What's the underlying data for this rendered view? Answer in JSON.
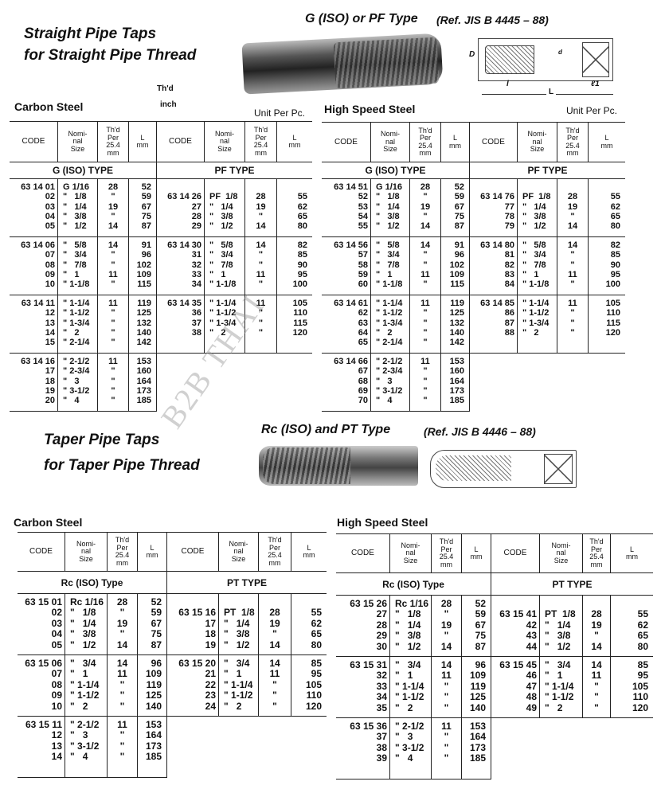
{
  "column_headers": [
    "CODE",
    "Nomi-\nnal\nSize",
    "Th'd\nPer\n25.4\nmm",
    "L\nmm"
  ],
  "watermark": "B2B THAI",
  "straight": {
    "title_line1": "Straight Pipe Taps",
    "title_line2": "for Straight Pipe Thread",
    "type_title": "G (ISO) or PF Type",
    "ref": "(Ref. JIS B 4445 – 88)",
    "drawing_labels": [
      "D",
      "d",
      "l",
      "ℓ1",
      "L"
    ],
    "thd_label": "Th'd",
    "inch_label": "inch",
    "carbon": {
      "label": "Carbon Steel",
      "unit": "Unit Per Pc.",
      "halves": [
        {
          "type_label": "G (ISO) TYPE",
          "groups": [
            [
              [
                "63 14 01",
                "G 1/16",
                "28",
                "52"
              ],
              [
                "02",
                "\"   1/8",
                "\"",
                "59"
              ],
              [
                "03",
                "\"   1/4",
                "19",
                "67"
              ],
              [
                "04",
                "\"   3/8",
                "\"",
                "75"
              ],
              [
                "05",
                "\"   1/2",
                "14",
                "87"
              ]
            ],
            [
              [
                "63 14 06",
                "\"   5/8",
                "14",
                "91"
              ],
              [
                "07",
                "\"   3/4",
                "\"",
                "96"
              ],
              [
                "08",
                "\"   7/8",
                "\"",
                "102"
              ],
              [
                "09",
                "\"   1",
                "11",
                "109"
              ],
              [
                "10",
                "\" 1-1/8",
                "\"",
                "115"
              ]
            ],
            [
              [
                "63 14 11",
                "\" 1-1/4",
                "11",
                "119"
              ],
              [
                "12",
                "\" 1-1/2",
                "\"",
                "125"
              ],
              [
                "13",
                "\" 1-3/4",
                "\"",
                "132"
              ],
              [
                "14",
                "\"   2",
                "\"",
                "140"
              ],
              [
                "15",
                "\" 2-1/4",
                "\"",
                "142"
              ]
            ],
            [
              [
                "63 14 16",
                "\" 2-1/2",
                "11",
                "153"
              ],
              [
                "17",
                "\" 2-3/4",
                "\"",
                "160"
              ],
              [
                "18",
                "\"   3",
                "\"",
                "164"
              ],
              [
                "19",
                "\" 3-1/2",
                "\"",
                "173"
              ],
              [
                "20",
                "\"   4",
                "\"",
                "185"
              ]
            ]
          ]
        },
        {
          "type_label": "PF TYPE",
          "groups": [
            [
              [
                "63 14 26",
                "PF  1/8",
                "28",
                "55"
              ],
              [
                "27",
                "\"   1/4",
                "19",
                "62"
              ],
              [
                "28",
                "\"   3/8",
                "\"",
                "65"
              ],
              [
                "29",
                "\"   1/2",
                "14",
                "80"
              ]
            ],
            [
              [
                "63 14 30",
                "\"   5/8",
                "14",
                "82"
              ],
              [
                "31",
                "\"   3/4",
                "\"",
                "85"
              ],
              [
                "32",
                "\"   7/8",
                "\"",
                "90"
              ],
              [
                "33",
                "\"   1",
                "11",
                "95"
              ],
              [
                "34",
                "\" 1-1/8",
                "\"",
                "100"
              ]
            ],
            [
              [
                "63 14 35",
                "\" 1-1/4",
                "11",
                "105"
              ],
              [
                "36",
                "\" 1-1/2",
                "\"",
                "110"
              ],
              [
                "37",
                "\" 1-3/4",
                "\"",
                "115"
              ],
              [
                "38",
                "\"   2",
                "\"",
                "120"
              ]
            ]
          ]
        }
      ]
    },
    "hss": {
      "label": "High Speed Steel",
      "unit": "Unit Per Pc.",
      "halves": [
        {
          "type_label": "G (ISO) TYPE",
          "groups": [
            [
              [
                "63 14 51",
                "G 1/16",
                "28",
                "52"
              ],
              [
                "52",
                "\"   1/8",
                "\"",
                "59"
              ],
              [
                "53",
                "\"   1/4",
                "19",
                "67"
              ],
              [
                "54",
                "\"   3/8",
                "\"",
                "75"
              ],
              [
                "55",
                "\"   1/2",
                "14",
                "87"
              ]
            ],
            [
              [
                "63 14 56",
                "\"   5/8",
                "14",
                "91"
              ],
              [
                "57",
                "\"   3/4",
                "\"",
                "96"
              ],
              [
                "58",
                "\"   7/8",
                "\"",
                "102"
              ],
              [
                "59",
                "\"   1",
                "11",
                "109"
              ],
              [
                "60",
                "\" 1-1/8",
                "\"",
                "115"
              ]
            ],
            [
              [
                "63 14 61",
                "\" 1-1/4",
                "11",
                "119"
              ],
              [
                "62",
                "\" 1-1/2",
                "\"",
                "125"
              ],
              [
                "63",
                "\" 1-3/4",
                "\"",
                "132"
              ],
              [
                "64",
                "\"   2",
                "\"",
                "140"
              ],
              [
                "65",
                "\" 2-1/4",
                "\"",
                "142"
              ]
            ],
            [
              [
                "63 14 66",
                "\" 2-1/2",
                "11",
                "153"
              ],
              [
                "67",
                "\" 2-3/4",
                "\"",
                "160"
              ],
              [
                "68",
                "\"   3",
                "\"",
                "164"
              ],
              [
                "69",
                "\" 3-1/2",
                "\"",
                "173"
              ],
              [
                "70",
                "\"   4",
                "\"",
                "185"
              ]
            ]
          ]
        },
        {
          "type_label": "PF TYPE",
          "groups": [
            [
              [
                "63 14 76",
                "PF  1/8",
                "28",
                "55"
              ],
              [
                "77",
                "\"   1/4",
                "19",
                "62"
              ],
              [
                "78",
                "\"   3/8",
                "\"",
                "65"
              ],
              [
                "79",
                "\"   1/2",
                "14",
                "80"
              ]
            ],
            [
              [
                "63 14 80",
                "\"   5/8",
                "14",
                "82"
              ],
              [
                "81",
                "\"   3/4",
                "\"",
                "85"
              ],
              [
                "82",
                "\"   7/8",
                "\"",
                "90"
              ],
              [
                "83",
                "\"   1",
                "11",
                "95"
              ],
              [
                "84",
                "\" 1-1/8",
                "\"",
                "100"
              ]
            ],
            [
              [
                "63 14 85",
                "\" 1-1/4",
                "11",
                "105"
              ],
              [
                "86",
                "\" 1-1/2",
                "\"",
                "110"
              ],
              [
                "87",
                "\" 1-3/4",
                "\"",
                "115"
              ],
              [
                "88",
                "\"   2",
                "\"",
                "120"
              ]
            ]
          ]
        }
      ]
    }
  },
  "taper": {
    "title_line1": "Taper Pipe Taps",
    "title_line2": "for Taper Pipe Thread",
    "type_title": "Rc (ISO) and PT Type",
    "ref": "(Ref. JIS B 4446 – 88)",
    "carbon": {
      "label": "Carbon Steel",
      "halves": [
        {
          "type_label": "Rc (ISO) Type",
          "groups": [
            [
              [
                "63 15 01",
                "Rc 1/16",
                "28",
                "52"
              ],
              [
                "02",
                "\"   1/8",
                "\"",
                "59"
              ],
              [
                "03",
                "\"   1/4",
                "19",
                "67"
              ],
              [
                "04",
                "\"   3/8",
                "\"",
                "75"
              ],
              [
                "05",
                "\"   1/2",
                "14",
                "87"
              ]
            ],
            [
              [
                "63 15 06",
                "\"   3/4",
                "14",
                "96"
              ],
              [
                "07",
                "\"   1",
                "11",
                "109"
              ],
              [
                "08",
                "\" 1-1/4",
                "\"",
                "119"
              ],
              [
                "09",
                "\" 1-1/2",
                "\"",
                "125"
              ],
              [
                "10",
                "\"   2",
                "\"",
                "140"
              ]
            ],
            [
              [
                "63 15 11",
                "\" 2-1/2",
                "11",
                "153"
              ],
              [
                "12",
                "\"   3",
                "\"",
                "164"
              ],
              [
                "13",
                "\" 3-1/2",
                "\"",
                "173"
              ],
              [
                "14",
                "\"   4",
                "\"",
                "185"
              ]
            ]
          ]
        },
        {
          "type_label": "PT TYPE",
          "groups": [
            [
              [
                "63 15 16",
                "PT  1/8",
                "28",
                "55"
              ],
              [
                "17",
                "\"   1/4",
                "19",
                "62"
              ],
              [
                "18",
                "\"   3/8",
                "\"",
                "65"
              ],
              [
                "19",
                "\"   1/2",
                "14",
                "80"
              ]
            ],
            [
              [
                "63 15 20",
                "\"   3/4",
                "14",
                "85"
              ],
              [
                "21",
                "\"   1",
                "11",
                "95"
              ],
              [
                "22",
                "\" 1-1/4",
                "\"",
                "105"
              ],
              [
                "23",
                "\" 1-1/2",
                "\"",
                "110"
              ],
              [
                "24",
                "\"   2",
                "\"",
                "120"
              ]
            ]
          ]
        }
      ]
    },
    "hss": {
      "label": "High Speed Steel",
      "halves": [
        {
          "type_label": "Rc (ISO) Type",
          "groups": [
            [
              [
                "63 15 26",
                "Rc 1/16",
                "28",
                "52"
              ],
              [
                "27",
                "\"   1/8",
                "\"",
                "59"
              ],
              [
                "28",
                "\"   1/4",
                "19",
                "67"
              ],
              [
                "29",
                "\"   3/8",
                "\"",
                "75"
              ],
              [
                "30",
                "\"   1/2",
                "14",
                "87"
              ]
            ],
            [
              [
                "63 15 31",
                "\"   3/4",
                "14",
                "96"
              ],
              [
                "32",
                "\"   1",
                "11",
                "109"
              ],
              [
                "33",
                "\" 1-1/4",
                "\"",
                "119"
              ],
              [
                "34",
                "\" 1-1/2",
                "\"",
                "125"
              ],
              [
                "35",
                "\"   2",
                "\"",
                "140"
              ]
            ],
            [
              [
                "63 15 36",
                "\" 2-1/2",
                "11",
                "153"
              ],
              [
                "37",
                "\"   3",
                "\"",
                "164"
              ],
              [
                "38",
                "\" 3-1/2",
                "\"",
                "173"
              ],
              [
                "39",
                "\"   4",
                "\"",
                "185"
              ]
            ]
          ]
        },
        {
          "type_label": "PT TYPE",
          "groups": [
            [
              [
                "63 15 41",
                "PT  1/8",
                "28",
                "55"
              ],
              [
                "42",
                "\"   1/4",
                "19",
                "62"
              ],
              [
                "43",
                "\"   3/8",
                "\"",
                "65"
              ],
              [
                "44",
                "\"   1/2",
                "14",
                "80"
              ]
            ],
            [
              [
                "63 15 45",
                "\"   3/4",
                "14",
                "85"
              ],
              [
                "46",
                "\"   1",
                "11",
                "95"
              ],
              [
                "47",
                "\" 1-1/4",
                "\"",
                "105"
              ],
              [
                "48",
                "\" 1-1/2",
                "\"",
                "110"
              ],
              [
                "49",
                "\"   2",
                "\"",
                "120"
              ]
            ]
          ]
        }
      ]
    }
  }
}
